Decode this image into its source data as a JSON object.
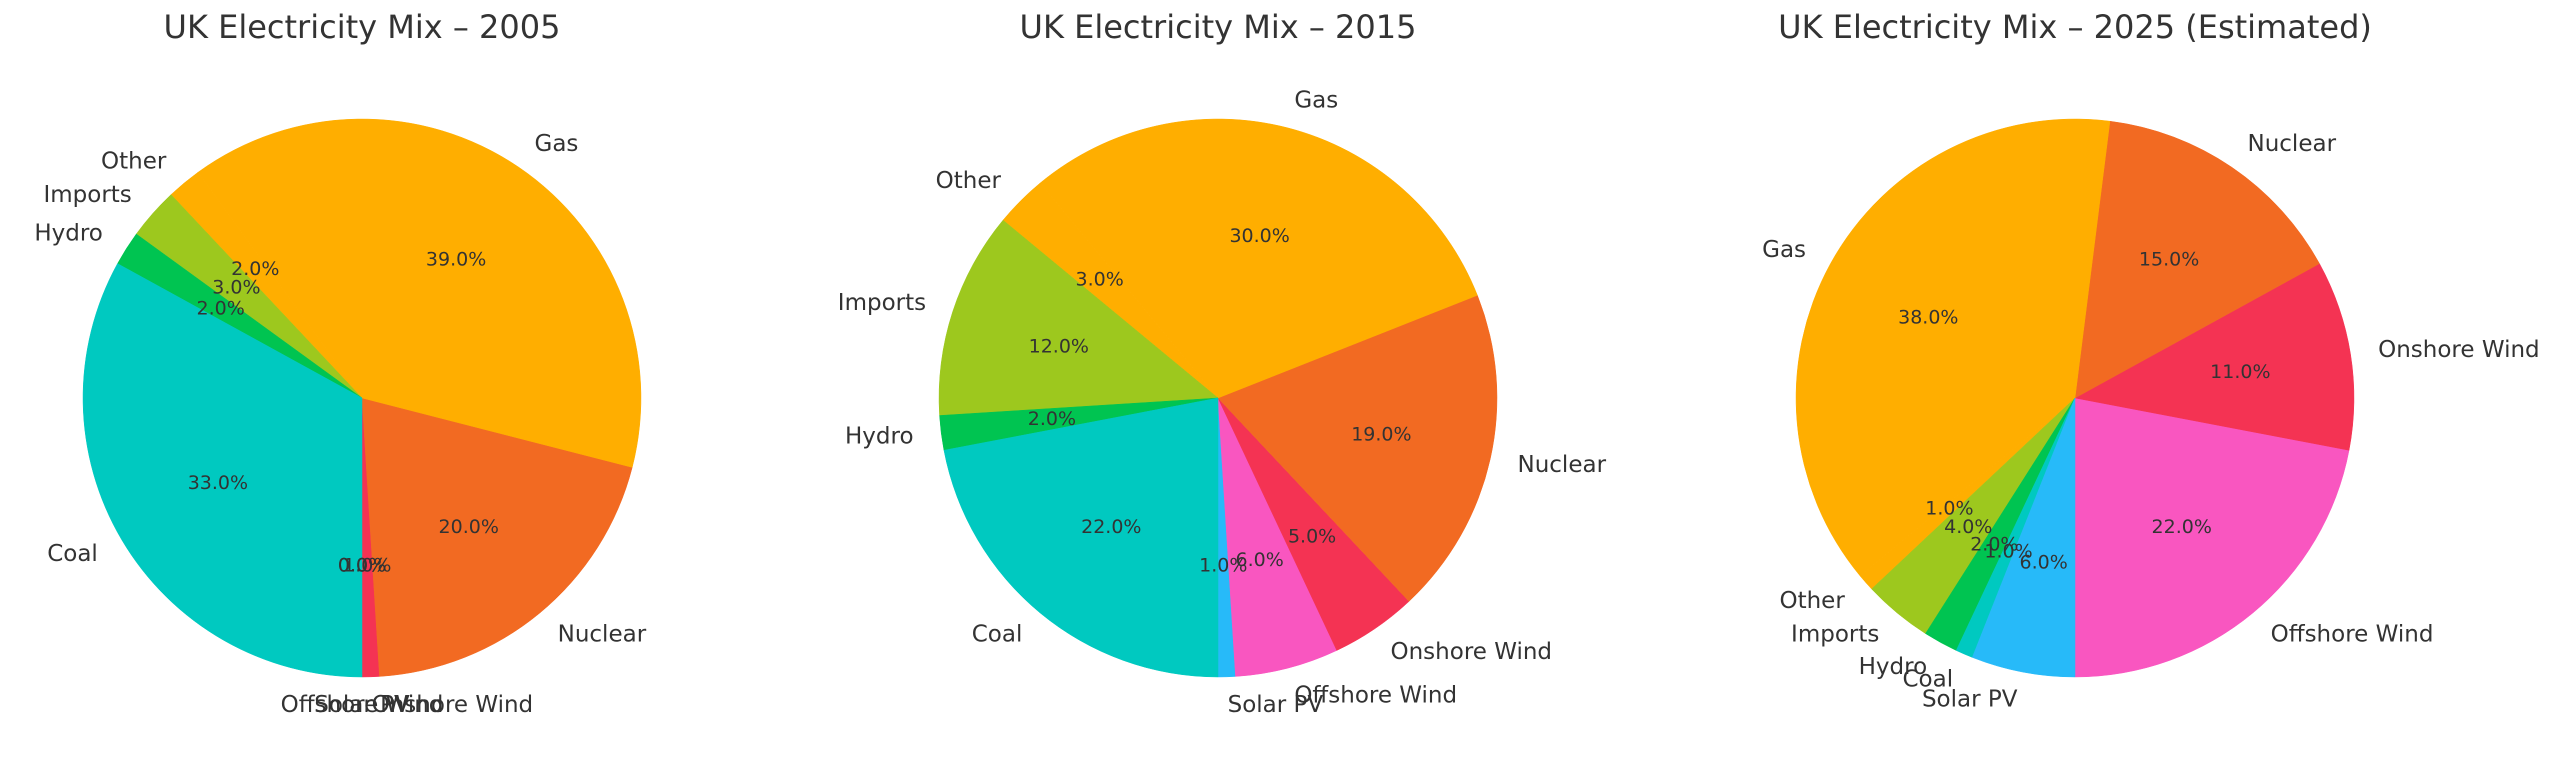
{
  "chart_data": [
    {
      "type": "pie",
      "title": "UK Electricity Mix – 2005",
      "categories": [
        "Solar PV",
        "Offshore Wind",
        "Onshore Wind",
        "Nuclear",
        "Gas",
        "Other",
        "Imports",
        "Hydro",
        "Coal"
      ],
      "values": [
        0.0,
        0.0,
        1.0,
        20.0,
        39.0,
        2.0,
        3.0,
        2.0,
        33.0
      ],
      "value_labels": [
        "0.0%",
        "0.0%",
        "1.0%",
        "20.0%",
        "39.0%",
        "2.0%",
        "3.0%",
        "2.0%",
        "33.0%"
      ]
    },
    {
      "type": "pie",
      "title": "UK Electricity Mix – 2015",
      "categories": [
        "Solar PV",
        "Offshore Wind",
        "Onshore Wind",
        "Nuclear",
        "Gas",
        "Other",
        "Imports",
        "Hydro",
        "Coal"
      ],
      "values": [
        1.0,
        6.0,
        5.0,
        19.0,
        30.0,
        3.0,
        12.0,
        2.0,
        22.0
      ],
      "value_labels": [
        "1.0%",
        "6.0%",
        "5.0%",
        "19.0%",
        "30.0%",
        "3.0%",
        "12.0%",
        "2.0%",
        "22.0%"
      ]
    },
    {
      "type": "pie",
      "title": "UK Electricity Mix – 2025 (Estimated)",
      "categories": [
        "Offshore Wind",
        "Onshore Wind",
        "Nuclear",
        "Gas",
        "Other",
        "Imports",
        "Hydro",
        "Coal",
        "Solar PV"
      ],
      "values": [
        22.0,
        11.0,
        15.0,
        38.0,
        1.0,
        4.0,
        2.0,
        1.0,
        6.0
      ],
      "value_labels": [
        "22.0%",
        "11.0%",
        "15.0%",
        "38.0%",
        "1.0%",
        "4.0%",
        "2.0%",
        "1.0%",
        "6.0%"
      ]
    }
  ],
  "colors": {
    "Coal": "#00c9c0",
    "Gas": "#ffae00",
    "Nuclear": "#f26a22",
    "Onshore Wind": "#f43353",
    "Offshore Wind": "#f956c0",
    "Solar PV": "#27baf9",
    "Hydro": "#00c451",
    "Imports": "#9dc81e",
    "Other": "#ffae00"
  }
}
